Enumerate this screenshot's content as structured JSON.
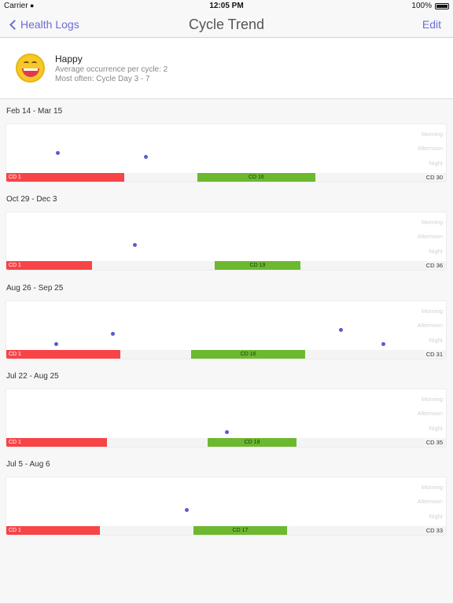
{
  "status_bar": {
    "carrier": "Carrier",
    "time": "12:05 PM",
    "battery": "100%"
  },
  "nav": {
    "back_label": "Health Logs",
    "title": "Cycle Trend",
    "edit_label": "Edit"
  },
  "summary": {
    "icon": "happy-emoji-icon",
    "title": "Happy",
    "line1": "Average occurrence per cycle: 2",
    "line2": "Most often: Cycle Day 3 - 7"
  },
  "time_of_day": {
    "morning": "Morning",
    "afternoon": "Afternoon",
    "night": "Night"
  },
  "colors": {
    "accent": "#6b6bd6",
    "period_bar": "#f74447",
    "fertile_bar": "#6cb82f",
    "dot": "#5b5bcf"
  },
  "cycles": [
    {
      "date_range": "Feb 14 - Mar 15",
      "start_label": "CD 1",
      "fertile_label": "CD 16",
      "end_label": "CD 30",
      "cycle_length": 30,
      "period_days": 8,
      "fertile_start_day": 13,
      "fertile_days": 8,
      "events": [
        {
          "day": 4,
          "time": "morning"
        },
        {
          "day": 10,
          "time": "afternoon"
        }
      ]
    },
    {
      "date_range": "Oct 29 - Dec 3",
      "start_label": "CD 1",
      "fertile_label": "CD 19",
      "end_label": "CD 36",
      "cycle_length": 36,
      "period_days": 7,
      "fertile_start_day": 17,
      "fertile_days": 7,
      "events": [
        {
          "day": 11,
          "time": "afternoon"
        }
      ]
    },
    {
      "date_range": "Aug 26 - Sep 25",
      "start_label": "CD 1",
      "fertile_label": "CD 16",
      "end_label": "CD 31",
      "cycle_length": 31,
      "period_days": 8,
      "fertile_start_day": 13,
      "fertile_days": 8,
      "events": [
        {
          "day": 4,
          "time": "night"
        },
        {
          "day": 8,
          "time": "afternoon"
        },
        {
          "day": 24,
          "time": "morning"
        },
        {
          "day": 27,
          "time": "night"
        }
      ]
    },
    {
      "date_range": "Jul 22 - Aug 25",
      "start_label": "CD 1",
      "fertile_label": "CD 18",
      "end_label": "CD 35",
      "cycle_length": 35,
      "period_days": 8,
      "fertile_start_day": 16,
      "fertile_days": 7,
      "events": [
        {
          "day": 18,
          "time": "night"
        }
      ]
    },
    {
      "date_range": "Jul 5 - Aug 6",
      "start_label": "CD 1",
      "fertile_label": "CD 17",
      "end_label": "CD 33",
      "cycle_length": 33,
      "period_days": 7,
      "fertile_start_day": 14,
      "fertile_days": 7,
      "events": [
        {
          "day": 14,
          "time": "afternoon"
        }
      ]
    }
  ]
}
